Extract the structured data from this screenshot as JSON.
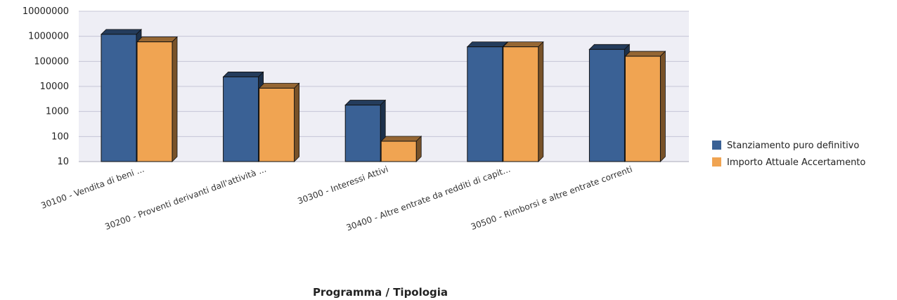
{
  "chart_data": {
    "type": "bar",
    "title": "",
    "xlabel": "Programma  / Tipologia",
    "ylabel": "",
    "yscale": "log",
    "ylim": [
      10,
      10000000
    ],
    "yticks": [
      "10",
      "100",
      "1000",
      "10000",
      "100000",
      "1000000",
      "10000000"
    ],
    "grid": true,
    "legend_position": "right",
    "categories": [
      "30100 - Vendita di beni ...",
      "30200 - Proventi derivanti dall'attività ...",
      "30300 - Interessi Attivi",
      "30400 - Altre entrate da redditi di capit...",
      "30500 - Rimborsi e altre entrate correnti"
    ],
    "series": [
      {
        "name": "Stanziamento puro definitivo",
        "color": "#3a6195",
        "values": [
          1200000,
          24000,
          1800,
          380000,
          300000
        ]
      },
      {
        "name": "Importo Attuale Accertamento",
        "color": "#f0a452",
        "values": [
          600000,
          8500,
          65,
          380000,
          160000
        ]
      }
    ]
  }
}
